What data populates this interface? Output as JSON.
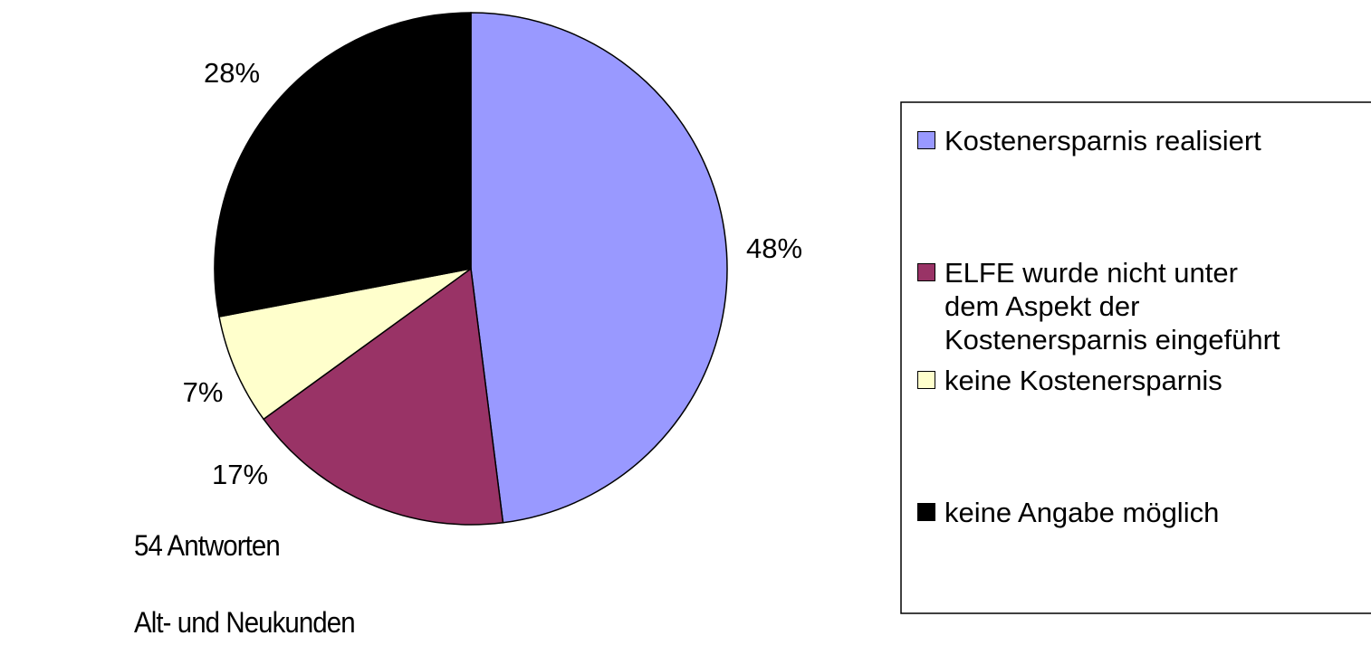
{
  "chart_data": {
    "type": "pie",
    "categories": [
      "Kostenersparnis realisiert",
      "ELFE wurde nicht unter\ndem Aspekt der\nKostenersparnis eingeführt",
      "keine Kostenersparnis",
      "keine Angabe möglich"
    ],
    "values": [
      48,
      17,
      7,
      28
    ],
    "value_labels": [
      "48%",
      "17%",
      "7%",
      "28%"
    ],
    "colors": [
      "#9999ff",
      "#993366",
      "#ffffcc",
      "#000000"
    ],
    "annotations": [
      "54 Antworten",
      "Alt- und Neukunden"
    ],
    "legend": "right"
  }
}
